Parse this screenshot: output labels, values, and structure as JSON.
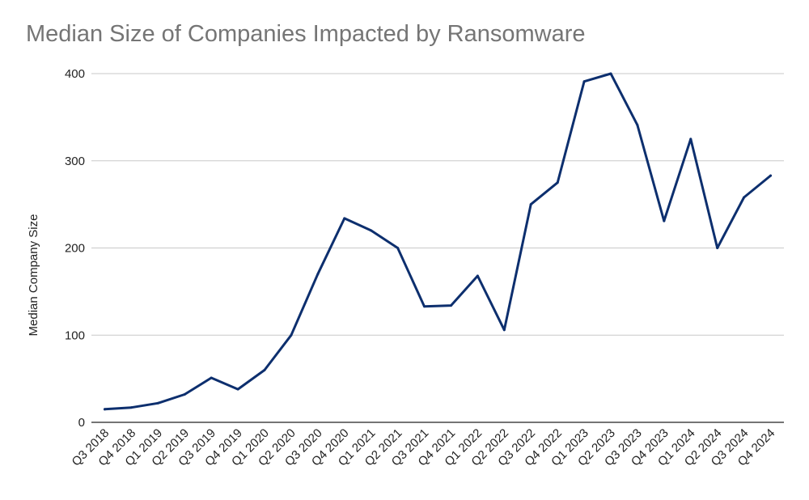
{
  "chart_data": {
    "type": "line",
    "title": "Median Size of Companies Impacted by Ransomware",
    "xlabel": "",
    "ylabel": "Median Company Size",
    "ylim": [
      0,
      400
    ],
    "yticks": [
      0,
      100,
      200,
      300,
      400
    ],
    "grid": true,
    "line_color": "#0d2f6e",
    "grid_color": "#c8c8c8",
    "categories": [
      "Q3 2018",
      "Q4 2018",
      "Q1 2019",
      "Q2 2019",
      "Q3 2019",
      "Q4 2019",
      "Q1 2020",
      "Q2 2020",
      "Q3 2020",
      "Q4 2020",
      "Q1 2021",
      "Q2 2021",
      "Q3 2021",
      "Q4 2021",
      "Q1 2022",
      "Q2 2022",
      "Q3 2022",
      "Q4 2022",
      "Q1 2023",
      "Q2 2023",
      "Q3 2023",
      "Q4 2023",
      "Q1 2024",
      "Q2 2024",
      "Q3 2024",
      "Q4 2024"
    ],
    "values": [
      15,
      17,
      22,
      32,
      51,
      38,
      60,
      100,
      170,
      234,
      220,
      200,
      133,
      134,
      168,
      106,
      250,
      275,
      391,
      400,
      341,
      231,
      325,
      200,
      258,
      283
    ]
  }
}
